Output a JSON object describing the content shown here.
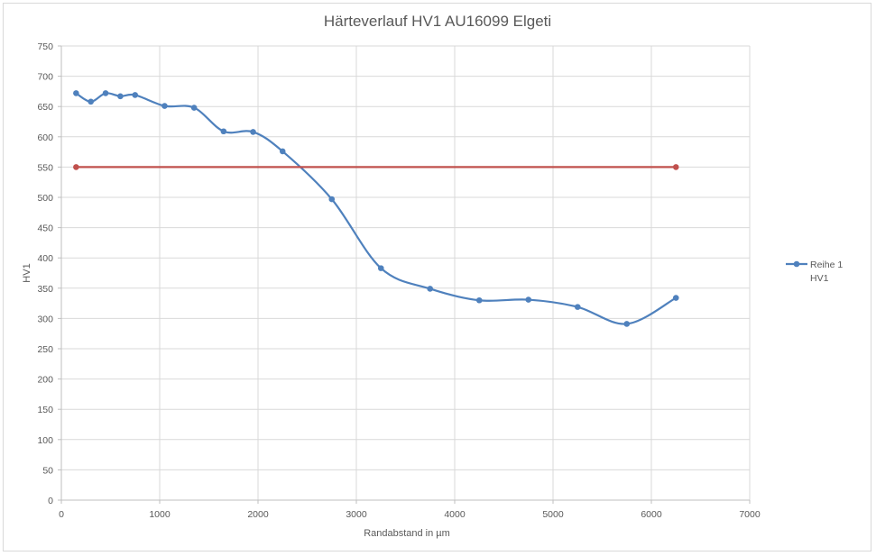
{
  "chart_data": {
    "type": "scatter",
    "title": "Härteverlauf HV1 AU16099 Elgeti",
    "xlabel": "Randabstand in µm",
    "ylabel": "HV1",
    "xlim": [
      0,
      7000
    ],
    "ylim": [
      0,
      750
    ],
    "x_ticks": [
      0,
      1000,
      2000,
      3000,
      4000,
      5000,
      6000,
      7000
    ],
    "y_ticks": [
      0,
      50,
      100,
      150,
      200,
      250,
      300,
      350,
      400,
      450,
      500,
      550,
      600,
      650,
      700,
      750
    ],
    "grid": true,
    "legend_position": "right",
    "series": [
      {
        "name": "Reihe 1",
        "color": "#4f81bd",
        "smooth": true,
        "x": [
          150,
          300,
          450,
          600,
          750,
          1050,
          1350,
          1650,
          1950,
          2250,
          2750,
          3250,
          3750,
          4250,
          4750,
          5250,
          5750,
          6250
        ],
        "y": [
          672,
          658,
          672,
          667,
          669,
          651,
          648,
          609,
          608,
          576,
          497,
          383,
          349,
          330,
          331,
          319,
          291,
          334
        ]
      },
      {
        "name": "HV1",
        "color": "#c0504d",
        "smooth": false,
        "x": [
          150,
          6250
        ],
        "y": [
          550,
          550
        ]
      }
    ]
  }
}
